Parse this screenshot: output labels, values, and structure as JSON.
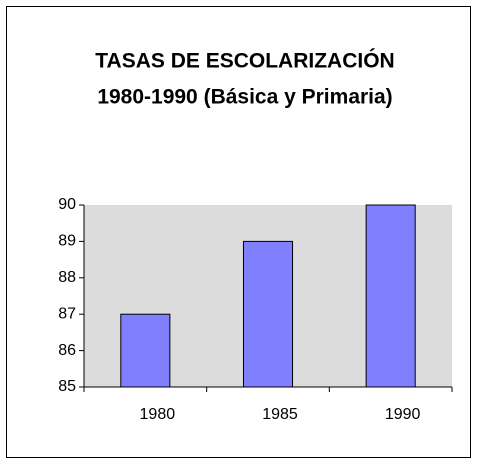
{
  "chart_data": {
    "type": "bar",
    "title": [
      "TASAS DE ESCOLARIZACIÓN",
      "1980-1990 (Básica y Primaria)"
    ],
    "categories": [
      "1980",
      "1985",
      "1990"
    ],
    "values": [
      87,
      89,
      90
    ],
    "color": "#8080ff",
    "ylim": [
      85,
      90
    ],
    "yticks": [
      85,
      86,
      87,
      88,
      89,
      90
    ],
    "grid": false
  }
}
